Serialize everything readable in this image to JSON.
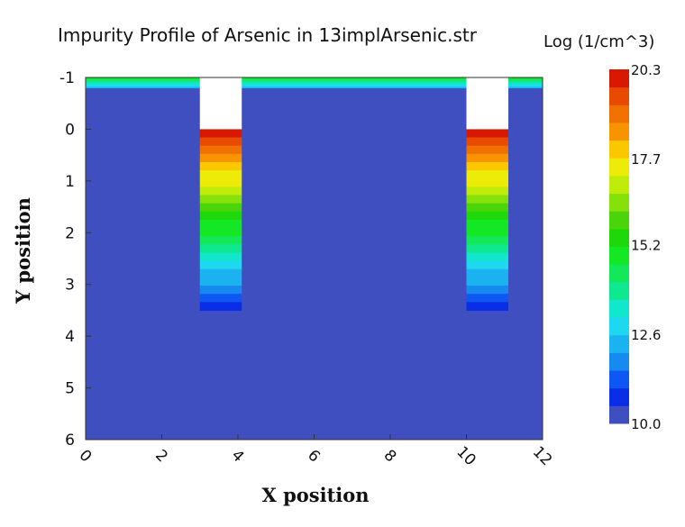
{
  "chart_data": {
    "type": "heatmap",
    "title": "Impurity Profile of Arsenic in 13implArsenic.str",
    "xlabel": "X position",
    "ylabel": "Y position",
    "xlim": [
      0,
      12
    ],
    "ylim": [
      -1,
      6
    ],
    "y_inverted": true,
    "x_ticks": [
      "0",
      "2",
      "4",
      "6",
      "8",
      "10",
      "12"
    ],
    "y_ticks": [
      "-1",
      "0",
      "1",
      "2",
      "3",
      "4",
      "5",
      "6"
    ],
    "colorbar": {
      "title": "Log (1/cm^3)",
      "min": 10.0,
      "max": 20.3,
      "tick_labels": [
        "20.3",
        "17.7",
        "15.2",
        "12.6",
        "10.0"
      ],
      "tick_values": [
        20.3,
        17.7,
        15.2,
        12.6,
        10.0
      ],
      "colors": [
        "#3f4fbf",
        "#0a2ee8",
        "#0f57f2",
        "#178af0",
        "#1ab3f0",
        "#1ed8f0",
        "#12e6cc",
        "#10e890",
        "#12e85a",
        "#14e824",
        "#1fd80a",
        "#4ad40a",
        "#86e00a",
        "#c0ec0c",
        "#ecec08",
        "#fbc800",
        "#f89400",
        "#f07000",
        "#e84a00",
        "#d81800"
      ]
    },
    "background_value": 10.0,
    "regions": [
      {
        "name": "surface layer",
        "x": [
          0,
          12
        ],
        "y_top": -1.0,
        "y_bottom": -0.8,
        "top_value": 15.0,
        "bottom_value": 12.3
      },
      {
        "name": "implant left",
        "x": [
          3.0,
          4.1
        ],
        "y_top": 0.0,
        "y_bottom": 3.5,
        "top_value": 20.0,
        "bottom_value": 10.6
      },
      {
        "name": "implant right",
        "x": [
          10.0,
          11.1
        ],
        "y_top": 0.0,
        "y_bottom": 3.5,
        "top_value": 20.0,
        "bottom_value": 10.6
      }
    ],
    "mask_openings": [
      {
        "x": [
          3.0,
          4.1
        ],
        "y_top": -1.0,
        "y_bottom": 0.0
      },
      {
        "x": [
          10.0,
          11.1
        ],
        "y_top": -1.0,
        "y_bottom": 0.0
      }
    ],
    "grid": false,
    "legend": "colorbar right"
  }
}
